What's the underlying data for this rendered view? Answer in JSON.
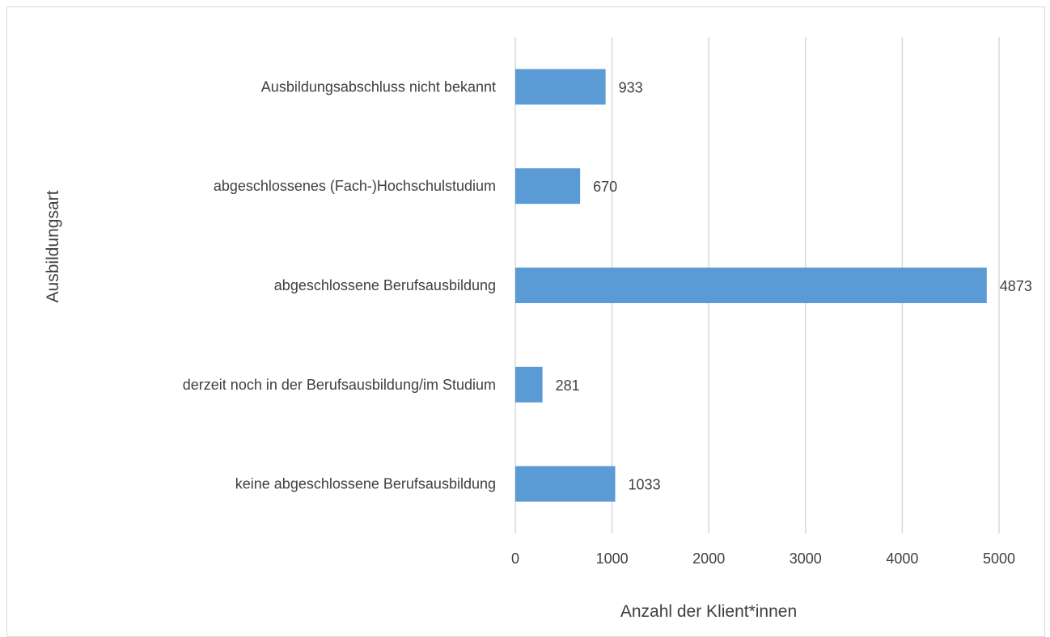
{
  "chart_data": {
    "type": "bar",
    "orientation": "horizontal",
    "categories": [
      "keine abgeschlossene Berufsausbildung",
      "derzeit noch in der Berufsausbildung/im Studium",
      "abgeschlossene Berufsausbildung",
      "abgeschlossenes (Fach-)Hochschulstudium",
      "Ausbildungsabschluss nicht bekannt"
    ],
    "values": [
      1033,
      281,
      4873,
      670,
      933
    ],
    "xlabel": "Anzahl der Klient*innen",
    "ylabel": "Ausbildungsart",
    "xlim": [
      0,
      5000
    ],
    "xticks": [
      "0",
      "1000",
      "2000",
      "3000",
      "4000",
      "5000"
    ],
    "grid": true,
    "legend": "none",
    "bar_color": "#5b9bd5",
    "grid_color": "#d9d9d9"
  }
}
